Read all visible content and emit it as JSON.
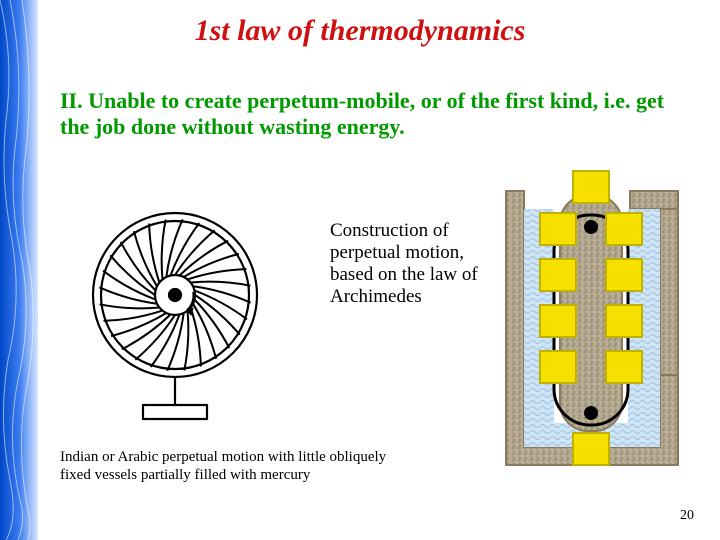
{
  "title": {
    "text": "1st law of thermodynamics",
    "color": "#d01010",
    "fontsize": 30
  },
  "subtitle": {
    "text": "II. Unable to create perpetum-mobile, or of the first kind, i.e. get the job done without wasting energy.",
    "color": "#009900",
    "fontsize": 22
  },
  "middle_text": {
    "text": "Construction of perpetual motion, based on the law of Archimedes",
    "color": "#000000",
    "fontsize": 19
  },
  "caption1": {
    "text": "Indian or Arabic perpetual motion with little obliquely fixed vessels partially filled with mercury",
    "color": "#000000",
    "fontsize": 15
  },
  "page_number": "20",
  "stripe": {
    "dark": "#0050d0",
    "light": "#9ec8ff"
  },
  "archimedes": {
    "frame": "#a0907a",
    "frame_dark": "#8a7860",
    "float": "#f5e000",
    "float_border": "#c0b000",
    "axle": "#000000",
    "water1": "#cfe8ff",
    "water2": "#a0c8e8",
    "tube_fill": "#b8b09a",
    "tube_edge": "#8a8068"
  },
  "wheel": {
    "stroke": "#000000"
  }
}
